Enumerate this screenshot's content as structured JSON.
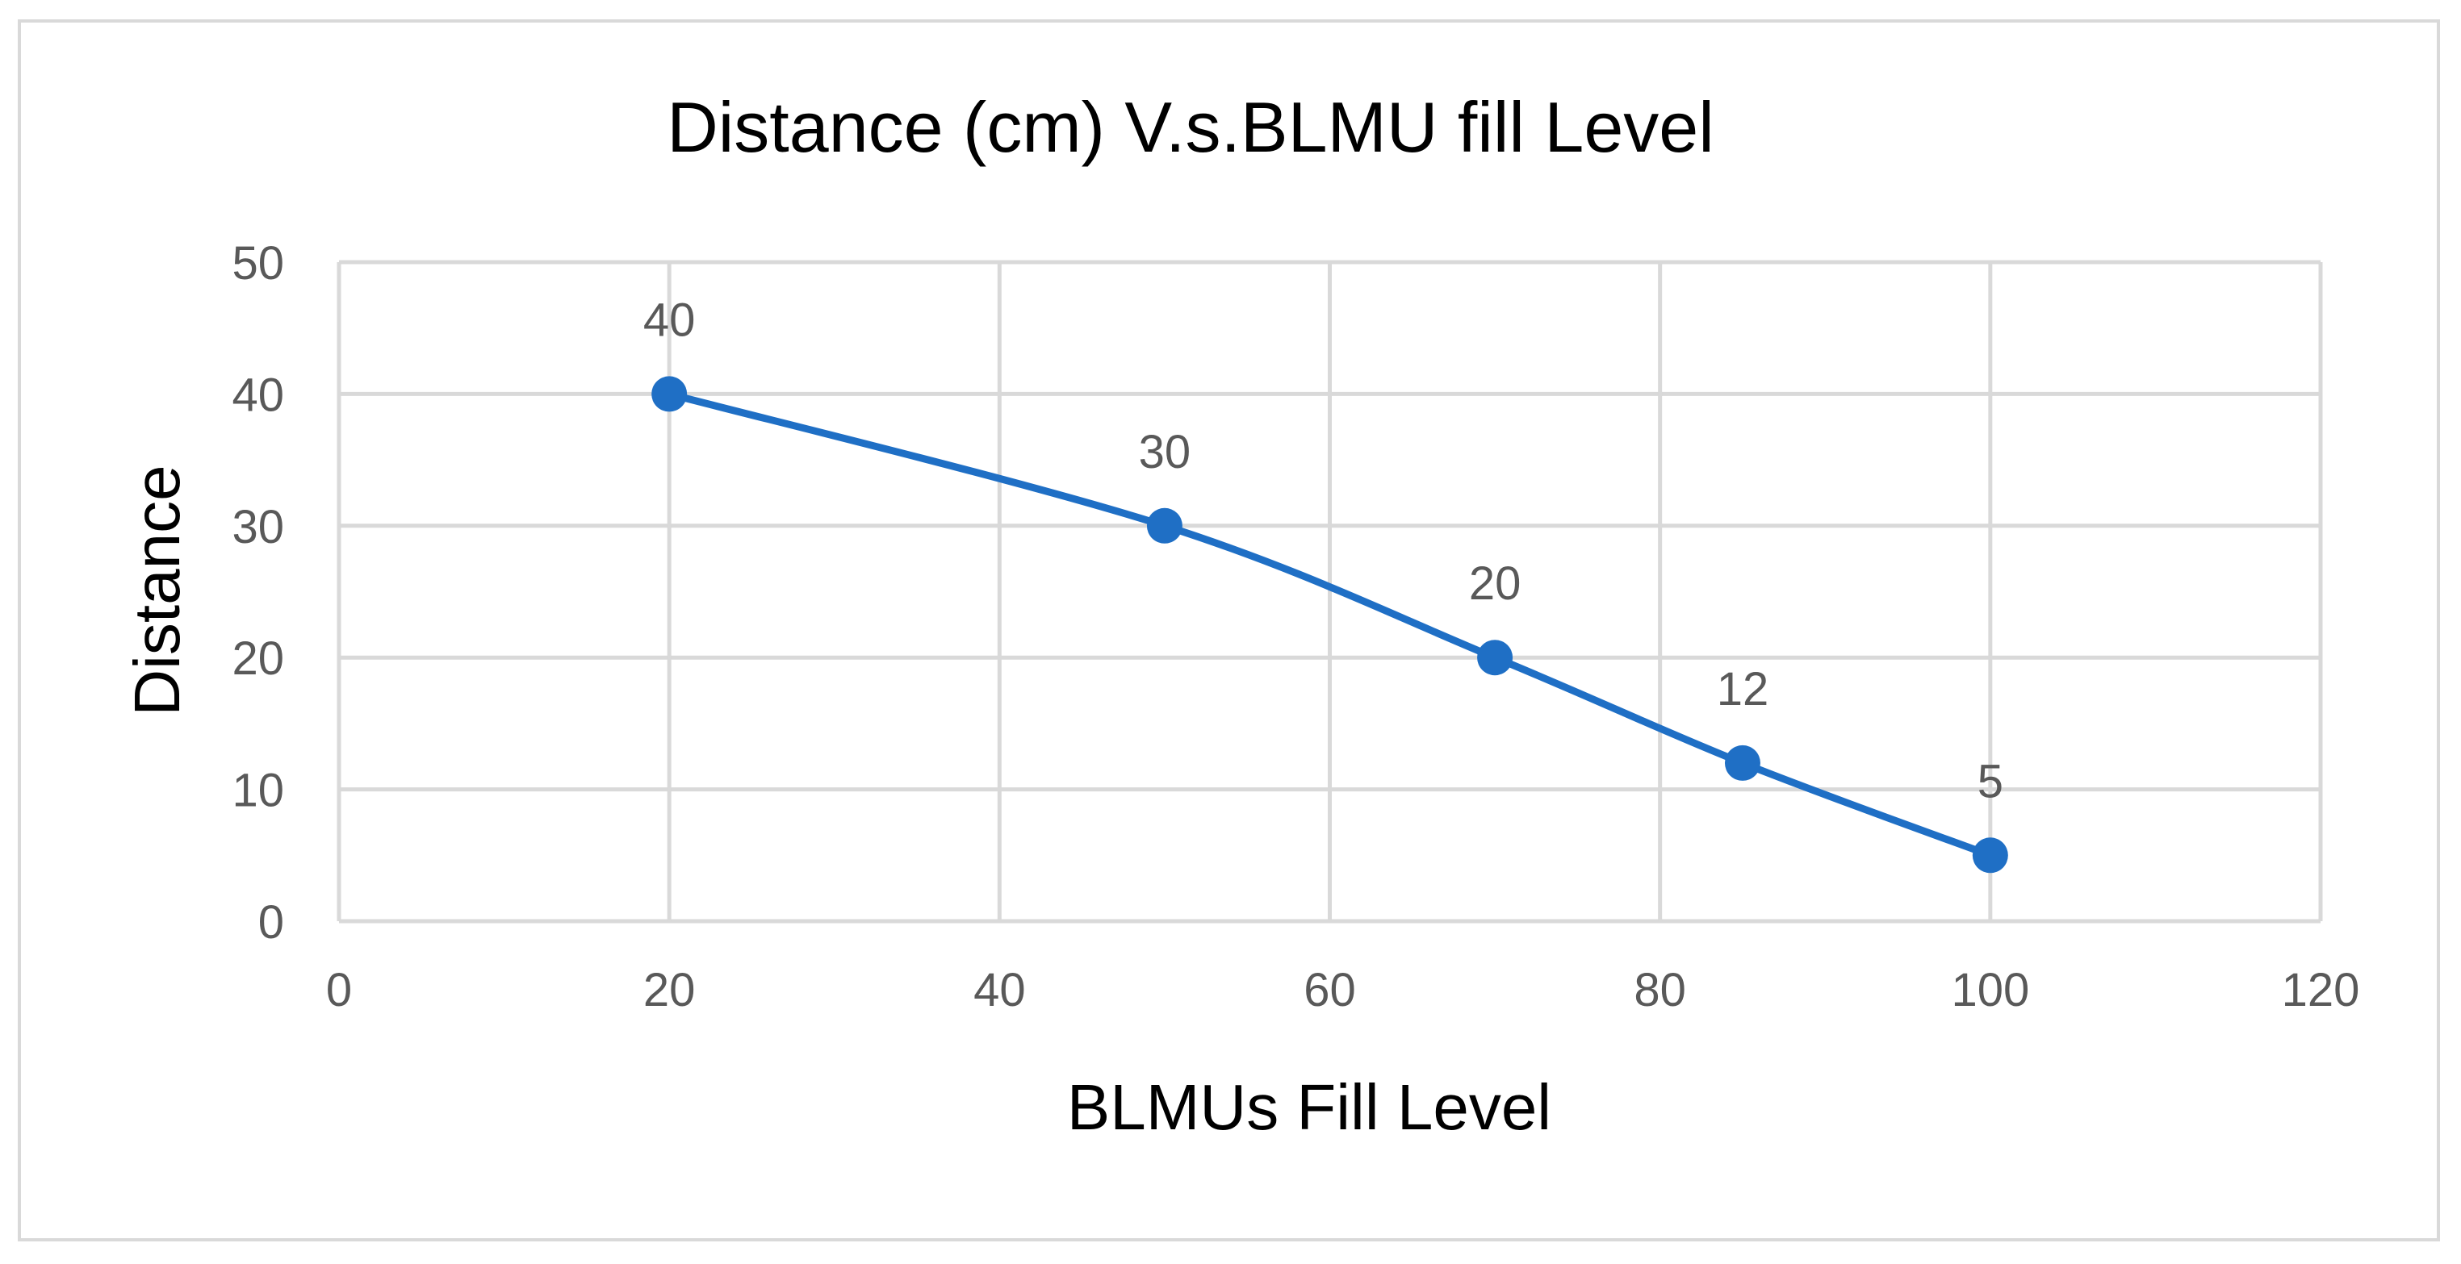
{
  "chart_data": {
    "type": "scatter",
    "title": "Distance (cm) V.s.BLMU fill Level",
    "xlabel": "BLMUs Fill Level",
    "ylabel": "Distance",
    "xlim": [
      0,
      120
    ],
    "ylim": [
      0,
      50
    ],
    "xticks": [
      0,
      20,
      40,
      60,
      80,
      100,
      120
    ],
    "yticks": [
      0,
      10,
      20,
      30,
      40,
      50
    ],
    "grid": true,
    "smooth_line": true,
    "series": [
      {
        "x": [
          20,
          50,
          70,
          85,
          100
        ],
        "y": [
          40,
          30,
          20,
          12,
          5
        ],
        "labels": [
          "40",
          "30",
          "20",
          "12",
          "5"
        ],
        "color": "#1f6fc5"
      }
    ]
  }
}
